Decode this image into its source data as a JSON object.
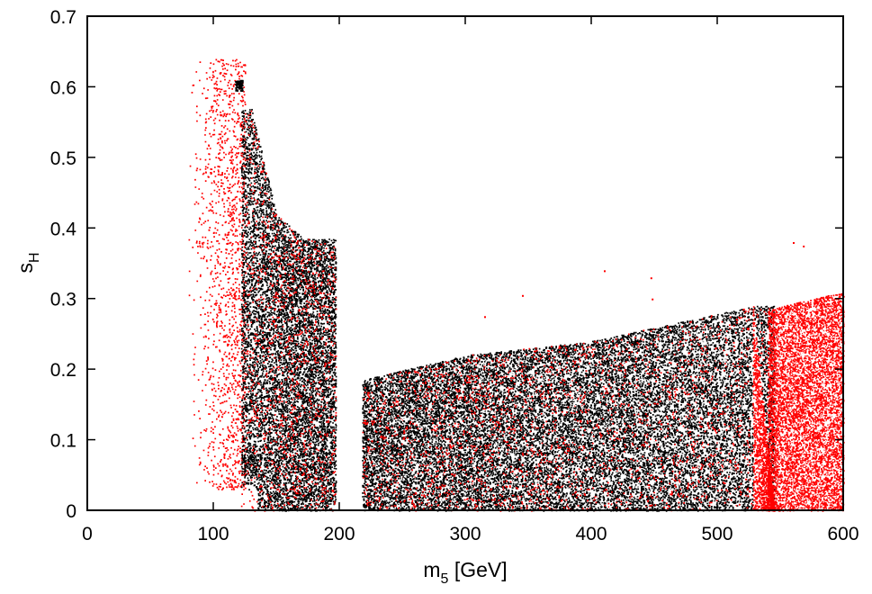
{
  "chart_data": {
    "type": "scatter",
    "title": "",
    "xlabel": {
      "base": "m",
      "sub": "5",
      "suffix": " [GeV]"
    },
    "ylabel": {
      "base": "s",
      "sub": "H"
    },
    "xlim": [
      0,
      600
    ],
    "ylim": [
      0,
      0.7
    ],
    "x_ticks": [
      0,
      100,
      200,
      300,
      400,
      500,
      600
    ],
    "y_ticks": [
      0,
      0.1,
      0.2,
      0.3,
      0.4,
      0.5,
      0.6,
      0.7
    ],
    "x_tick_labels": [
      "0",
      "100",
      "200",
      "300",
      "400",
      "500",
      "600"
    ],
    "y_tick_labels": [
      "0",
      "0.1",
      "0.2",
      "0.3",
      "0.4",
      "0.5",
      "0.6",
      "0.7"
    ],
    "grid": false,
    "legend": "none",
    "colors": {
      "black_points": "#000000",
      "red_points": "#ff0000"
    },
    "series": [
      {
        "color": "#ff0000",
        "regions": [
          {
            "x": [
              80,
              125
            ],
            "y": [
              0.03,
              0.64
            ],
            "density": "sparse"
          },
          {
            "x": [
              540,
              600
            ],
            "y": [
              0.0,
              0.31
            ],
            "density": "dense"
          }
        ],
        "outliers": [
          [
            315,
            0.275
          ],
          [
            345,
            0.305
          ],
          [
            410,
            0.34
          ],
          [
            447,
            0.33
          ],
          [
            448,
            0.3
          ],
          [
            568,
            0.375
          ],
          [
            560,
            0.38
          ]
        ]
      },
      {
        "color": "#000000",
        "regions": [
          {
            "x": [
              122,
              197
            ],
            "y_min": 0.0,
            "y_max_profile": [
              [
                122,
                0.57
              ],
              [
                130,
                0.57
              ],
              [
                150,
                0.42
              ],
              [
                172,
                0.385
              ],
              [
                197,
                0.385
              ]
            ]
          },
          {
            "x": [
              218,
              545
            ],
            "y_min": 0.0,
            "y_max_profile": [
              [
                218,
                0.185
              ],
              [
                300,
                0.22
              ],
              [
                400,
                0.24
              ],
              [
                530,
                0.29
              ]
            ]
          }
        ]
      }
    ]
  }
}
